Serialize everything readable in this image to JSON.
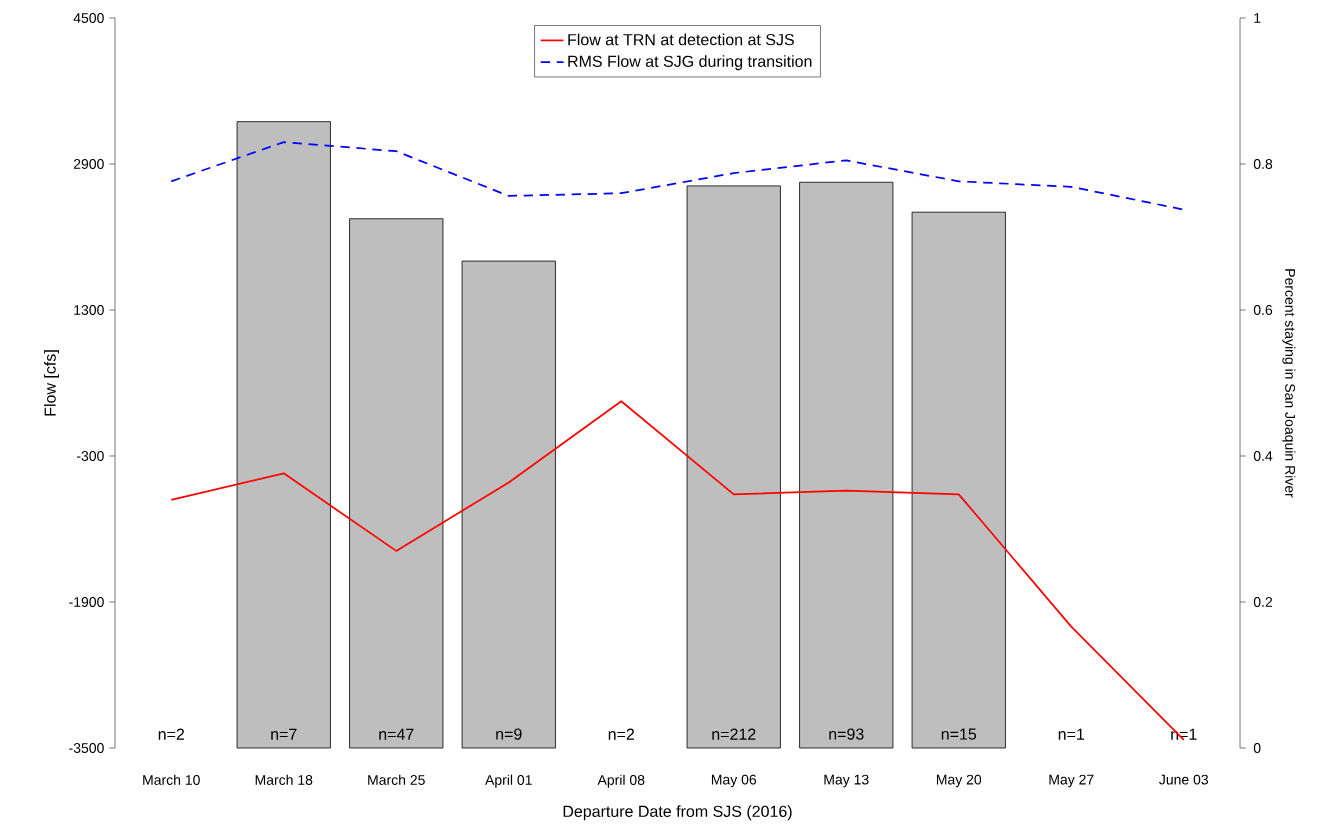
{
  "chart_data": {
    "type": "bar",
    "xlabel": "Departure Date from SJS (2016)",
    "ylabel": "Flow [cfs]",
    "y2label": "Percent staying in San Joaquin River",
    "categories": [
      "March 10",
      "March 18",
      "March 25",
      "April 01",
      "April 08",
      "May 06",
      "May 13",
      "May 20",
      "May 27",
      "June 03"
    ],
    "series": [
      {
        "axis": "y2",
        "color": "#bebebe",
        "values": [
          null,
          0.858,
          0.725,
          0.667,
          null,
          0.77,
          0.775,
          0.734,
          null,
          null
        ]
      },
      {
        "type": "line",
        "name": "Flow at TRN at detection at SJS",
        "color": "#ff0000",
        "line_style": "solid",
        "values": [
          -780,
          -490,
          -1340,
          -590,
          300,
          -720,
          -680,
          -720,
          -2170,
          -3410
        ]
      },
      {
        "type": "line",
        "name": "RMS Flow at SJG during transition",
        "color": "#0000ff",
        "line_style": "dashed",
        "values": [
          2710,
          3140,
          3040,
          2550,
          2580,
          2800,
          2940,
          2710,
          2650,
          2400
        ]
      }
    ],
    "ylim": [
      -3500,
      4500
    ],
    "yticks": [
      -3500,
      -1900,
      -300,
      1300,
      2900,
      4500
    ],
    "y2lim": [
      0,
      1
    ],
    "y2ticks": [
      0,
      0.2,
      0.4,
      0.6,
      0.8,
      1
    ],
    "annotations": [
      "n=2",
      "n=7",
      "n=47",
      "n=9",
      "n=2",
      "n=212",
      "n=93",
      "n=15",
      "n=1",
      "n=1"
    ],
    "legend": "top",
    "grid": false
  }
}
